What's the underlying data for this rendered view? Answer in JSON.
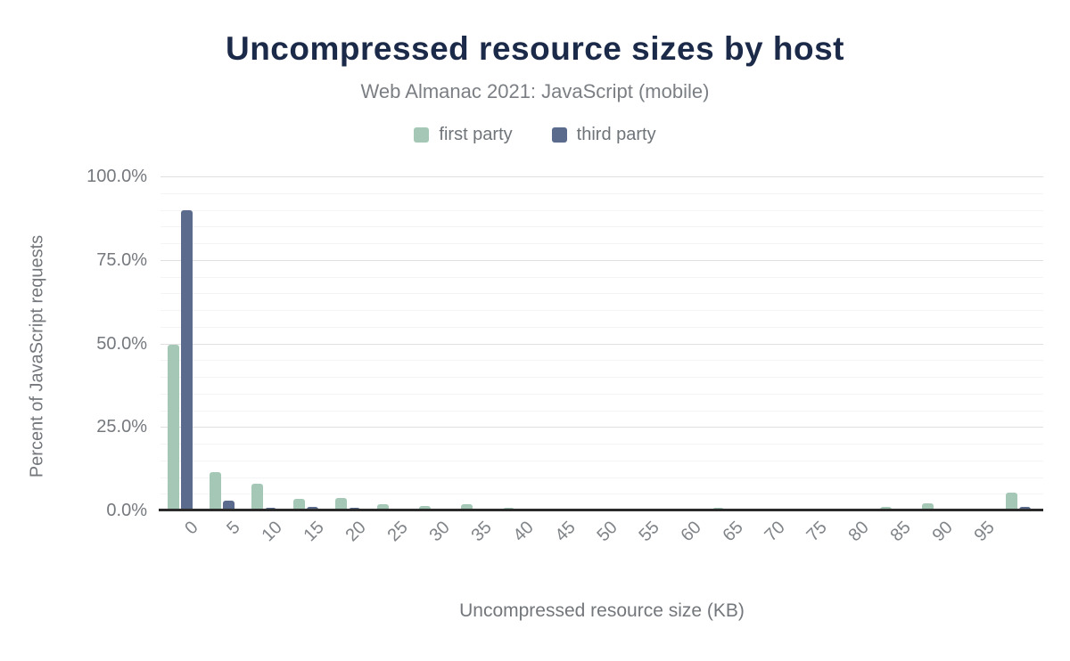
{
  "header": {
    "title": "Uncompressed resource sizes by host",
    "subtitle": "Web Almanac 2021: JavaScript (mobile)"
  },
  "legend": {
    "items": [
      {
        "label": "first party",
        "color": "#a5c8b6"
      },
      {
        "label": "third party",
        "color": "#5b6b8d"
      }
    ]
  },
  "chart_data": {
    "type": "bar",
    "title": "Uncompressed resource sizes by host",
    "subtitle": "Web Almanac 2021: JavaScript (mobile)",
    "categories": [
      "0",
      "5",
      "10",
      "15",
      "20",
      "25",
      "30",
      "35",
      "40",
      "45",
      "50",
      "55",
      "60",
      "65",
      "70",
      "75",
      "80",
      "85",
      "90",
      "95",
      ""
    ],
    "series": [
      {
        "name": "first party",
        "color": "#a5c8b6",
        "values": [
          49.5,
          11.5,
          7.9,
          3.6,
          3.7,
          2.0,
          1.3,
          1.8,
          0.9,
          0.5,
          0.5,
          0.6,
          0.6,
          0.7,
          0.1,
          0.1,
          0.5,
          1.2,
          2.1,
          0.5,
          5.3
        ]
      },
      {
        "name": "third party",
        "color": "#5b6b8d",
        "values": [
          90.0,
          3.0,
          0.9,
          1.0,
          0.9,
          0.3,
          0.2,
          0.2,
          0.1,
          0.1,
          0.1,
          0.1,
          0.1,
          0.1,
          0.1,
          0.1,
          0.1,
          0.2,
          0.2,
          0.1,
          1.0
        ]
      }
    ],
    "xlabel": "Uncompressed resource size (KB)",
    "ylabel": "Percent of JavaScript requests",
    "ylim": [
      0,
      100
    ],
    "ytick_labels": [
      "0.0%",
      "25.0%",
      "50.0%",
      "75.0%",
      "100.0%"
    ],
    "grid": {
      "minor_step_pct": 5,
      "major_step_pct": 25,
      "orientation": "horizontal"
    },
    "legend_position": "top"
  },
  "colors": {
    "title": "#1b2a49",
    "subtitle": "#7b7f84",
    "axis_text": "#75797e",
    "axis_line": "#2b2b2b",
    "grid_minor": "#f4f4f6",
    "grid_major": "#e0e0e3",
    "background": "#ffffff"
  }
}
